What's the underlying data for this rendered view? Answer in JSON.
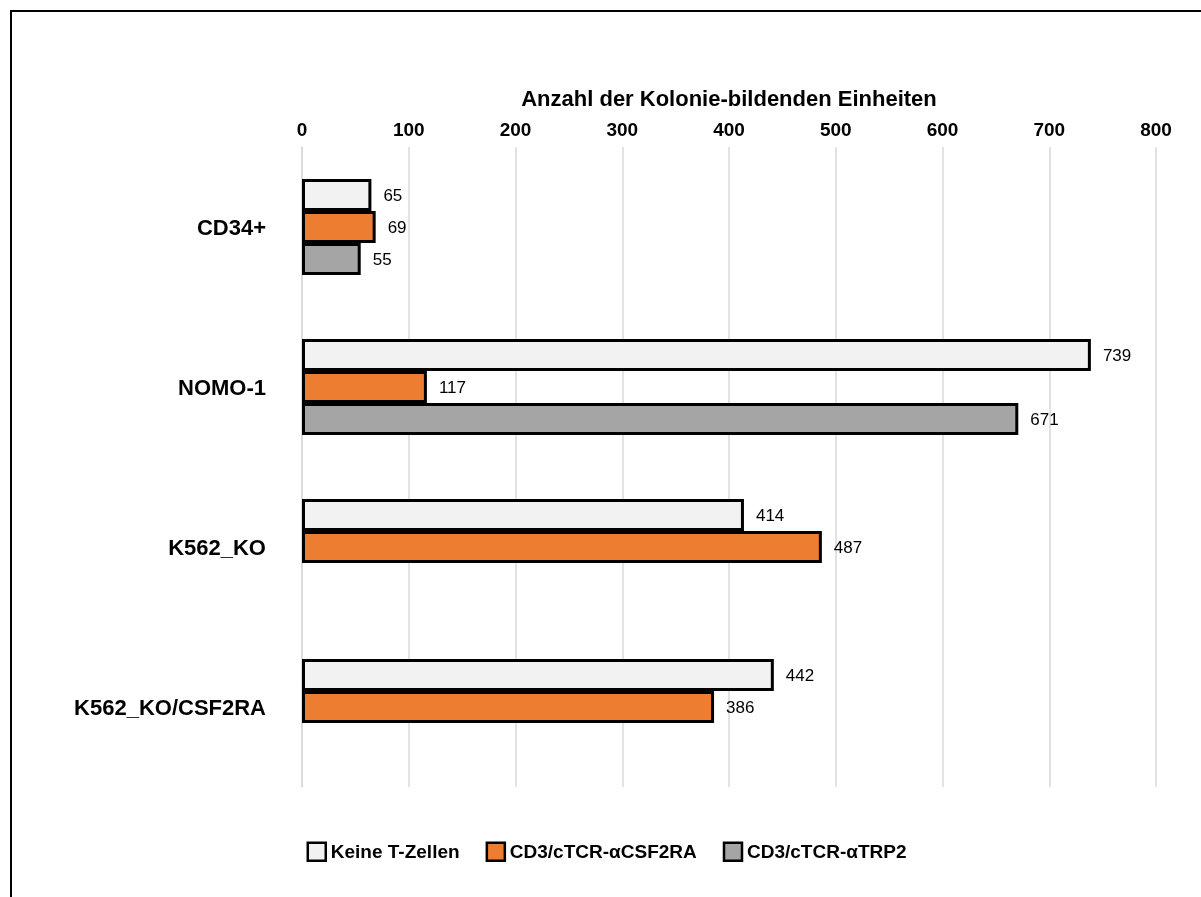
{
  "chart_data": {
    "type": "bar",
    "orientation": "horizontal",
    "xlabel": "Anzahl der Kolonie-bildenden Einheiten",
    "categories": [
      "CD34+",
      "NOMO-1",
      "K562_KO",
      "K562_KO/CSF2RA"
    ],
    "series": [
      {
        "name": "Keine T-Zellen",
        "color": "#f2f2f2",
        "values": [
          65,
          739,
          414,
          442
        ]
      },
      {
        "name": "CD3/cTCR-αCSF2RA",
        "color": "#ed7d31",
        "values": [
          69,
          117,
          487,
          386
        ]
      },
      {
        "name": "CD3/cTCR-αTRP2",
        "color": "#a5a5a5",
        "values": [
          55,
          671,
          null,
          null
        ]
      }
    ],
    "xlim": [
      0,
      800
    ],
    "xticks": [
      0,
      100,
      200,
      300,
      400,
      500,
      600,
      700,
      800
    ],
    "grid": "x",
    "legend": "bottom",
    "data_labels": true
  }
}
